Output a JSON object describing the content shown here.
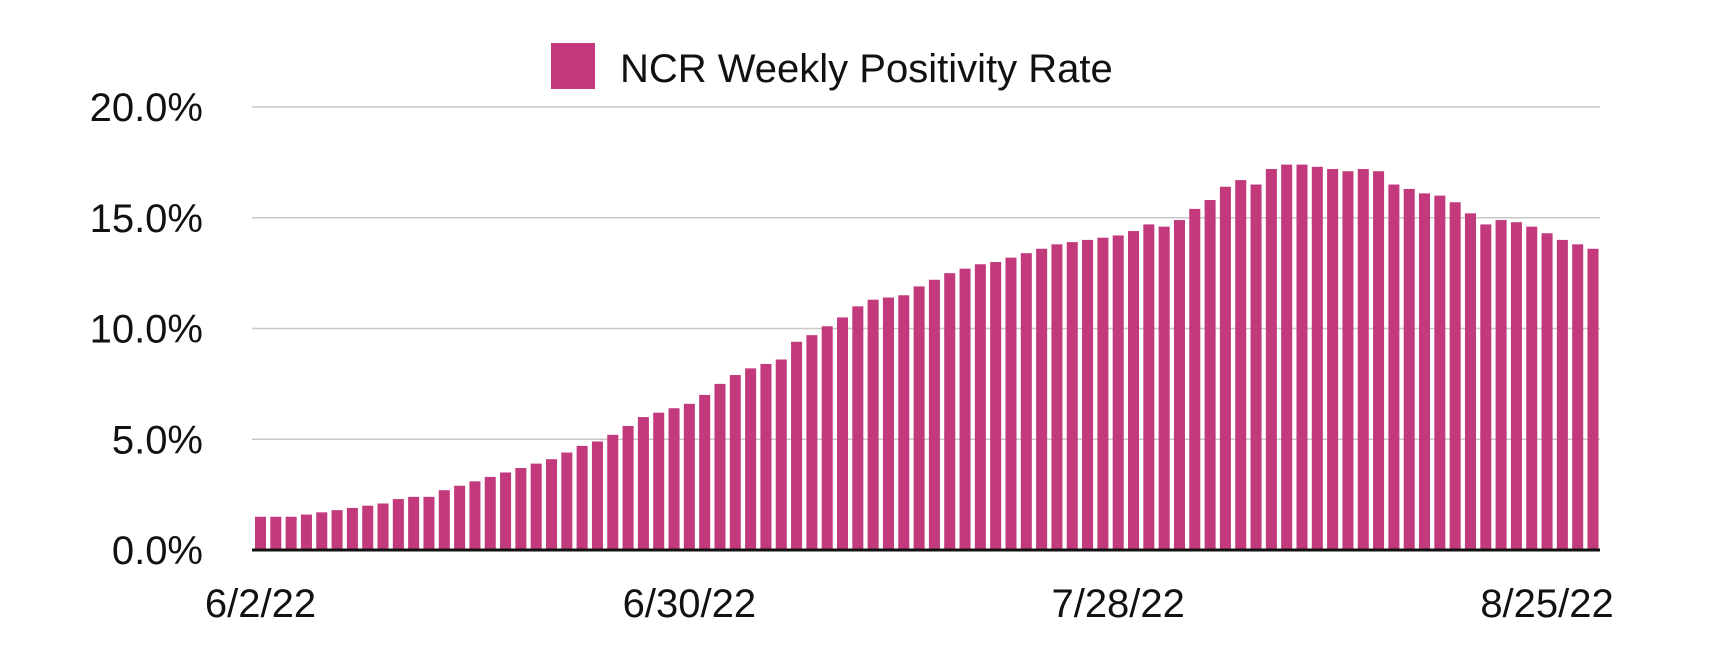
{
  "chart_data": {
    "type": "bar",
    "title": "",
    "xlabel": "",
    "ylabel": "",
    "ylim": [
      0,
      20
    ],
    "grid": true,
    "legend_position": "top-center",
    "bar_color": "#c23a7c",
    "series": [
      {
        "name": "NCR Weekly Positivity Rate",
        "values": [
          1.5,
          1.5,
          1.5,
          1.6,
          1.7,
          1.8,
          1.9,
          2.0,
          2.1,
          2.3,
          2.4,
          2.4,
          2.7,
          2.9,
          3.1,
          3.3,
          3.5,
          3.7,
          3.9,
          4.1,
          4.4,
          4.7,
          4.9,
          5.2,
          5.6,
          6.0,
          6.2,
          6.4,
          6.6,
          7.0,
          7.5,
          7.9,
          8.2,
          8.4,
          8.6,
          9.4,
          9.7,
          10.1,
          10.5,
          11.0,
          11.3,
          11.4,
          11.5,
          11.9,
          12.2,
          12.5,
          12.7,
          12.9,
          13.0,
          13.2,
          13.4,
          13.6,
          13.8,
          13.9,
          14.0,
          14.1,
          14.2,
          14.4,
          14.7,
          14.6,
          14.9,
          15.4,
          15.8,
          16.4,
          16.7,
          16.5,
          17.2,
          17.4,
          17.4,
          17.3,
          17.2,
          17.1,
          17.2,
          17.1,
          16.5,
          16.3,
          16.1,
          16.0,
          15.7,
          15.2,
          14.7,
          14.9,
          14.8,
          14.6,
          14.3,
          14.0,
          13.8,
          13.6
        ]
      }
    ],
    "y_ticks": [
      "0.0%",
      "5.0%",
      "10.0%",
      "15.0%",
      "20.0%"
    ],
    "y_tick_values": [
      0,
      5,
      10,
      15,
      20
    ],
    "x_tick_labels": [
      {
        "label": "6/2/22",
        "index": 0
      },
      {
        "label": "6/30/22",
        "index": 28
      },
      {
        "label": "7/28/22",
        "index": 56
      },
      {
        "label": "8/25/22",
        "index": 84
      }
    ]
  }
}
